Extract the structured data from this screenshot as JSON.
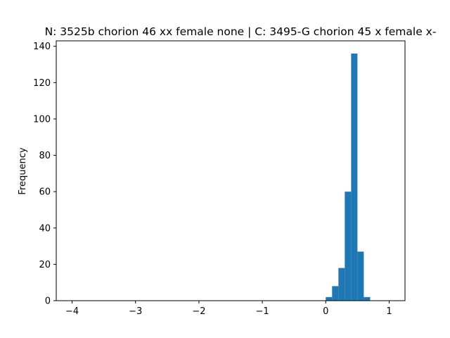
{
  "chart_data": {
    "type": "bar",
    "title": "N: 3525b chorion 46 xx female none | C: 3495-G chorion 45 x female x-",
    "xlabel": "",
    "ylabel": "Frequency",
    "xlim": [
      -4.25,
      1.25
    ],
    "ylim": [
      0,
      143
    ],
    "xticks": [
      -4,
      -3,
      -2,
      -1,
      0,
      1
    ],
    "yticks": [
      0,
      20,
      40,
      60,
      80,
      100,
      120,
      140
    ],
    "grid": false,
    "bar_color": "#1f77b4",
    "bins": [
      {
        "x0": 0.0,
        "x1": 0.1,
        "value": 2
      },
      {
        "x0": 0.1,
        "x1": 0.2,
        "value": 8
      },
      {
        "x0": 0.2,
        "x1": 0.3,
        "value": 18
      },
      {
        "x0": 0.3,
        "x1": 0.4,
        "value": 60
      },
      {
        "x0": 0.4,
        "x1": 0.5,
        "value": 136
      },
      {
        "x0": 0.5,
        "x1": 0.6,
        "value": 27
      },
      {
        "x0": 0.6,
        "x1": 0.7,
        "value": 2
      }
    ]
  }
}
